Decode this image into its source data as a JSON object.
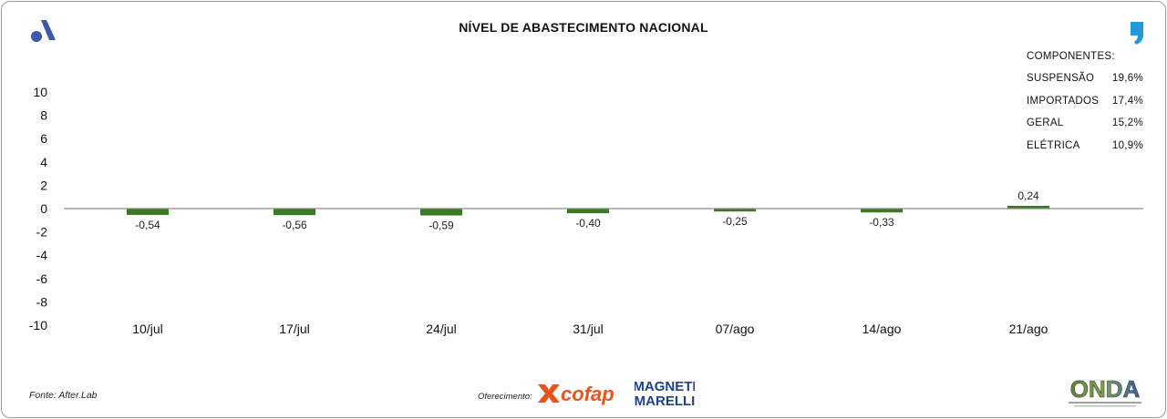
{
  "page": {
    "title": "NÍVEL DE ABASTECIMENTO NACIONAL",
    "source": "Fonte: After.Lab",
    "offer_label": "Oferecimento:",
    "sponsor_1": "cofap",
    "sponsor_2_line1": "MAGNETI",
    "sponsor_2_line2": "MARELLI",
    "brand": "ONDA",
    "accent_color": "#3d5aa8",
    "quote_color": "#1e9bd7",
    "bar_color": "#3a7a22",
    "icons": [
      "a-logo-icon",
      "quote-icon"
    ]
  },
  "components": {
    "title": "COMPONENTES:",
    "items": [
      {
        "name": "SUSPENSÃO",
        "value": "19,6%"
      },
      {
        "name": "IMPORTADOS",
        "value": "17,4%"
      },
      {
        "name": "GERAL",
        "value": "15,2%"
      },
      {
        "name": "ELÉTRICA",
        "value": "10,9%"
      }
    ]
  },
  "chart_data": {
    "type": "bar",
    "title": "NÍVEL DE ABASTECIMENTO NACIONAL",
    "categories": [
      "10/jul",
      "17/jul",
      "24/jul",
      "31/jul",
      "07/ago",
      "14/ago",
      "21/ago"
    ],
    "values": [
      -0.54,
      -0.56,
      -0.59,
      -0.4,
      -0.25,
      -0.33,
      0.24
    ],
    "value_labels": [
      "-0,54",
      "-0,56",
      "-0,59",
      "-0,40",
      "-0,25",
      "-0,33",
      "0,24"
    ],
    "ylim": [
      -10,
      10
    ],
    "yticks": [
      10,
      8,
      6,
      4,
      2,
      0,
      -2,
      -4,
      -6,
      -8,
      -10
    ],
    "ytick_labels": [
      "10",
      "8",
      "6",
      "4",
      "2",
      "0",
      "-2",
      "-4",
      "-6",
      "-8",
      "-10"
    ],
    "grid": false,
    "legend": "none"
  }
}
